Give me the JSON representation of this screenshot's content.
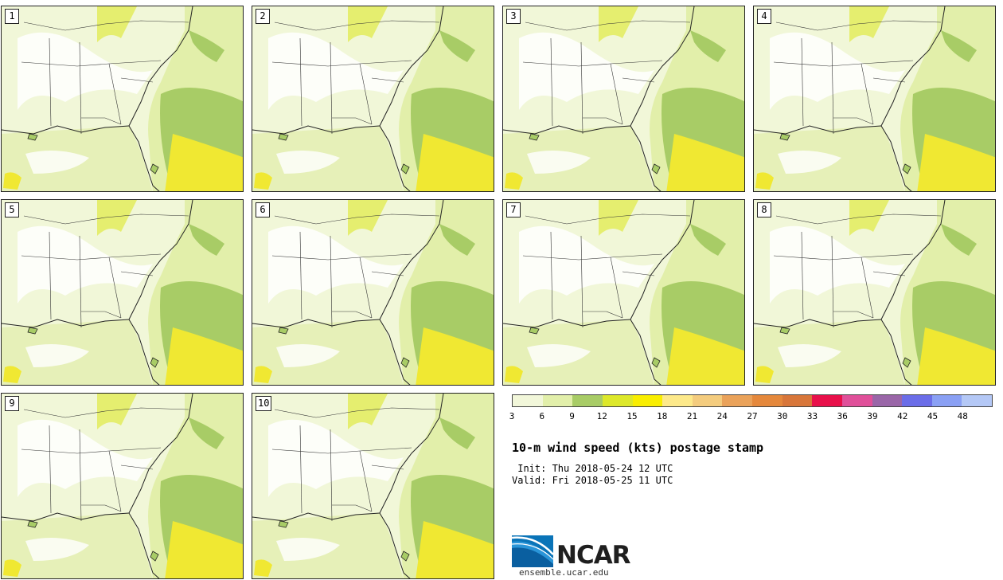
{
  "panels": [
    {
      "label": "1"
    },
    {
      "label": "2"
    },
    {
      "label": "3"
    },
    {
      "label": "4"
    },
    {
      "label": "5"
    },
    {
      "label": "6"
    },
    {
      "label": "7"
    },
    {
      "label": "8"
    },
    {
      "label": "9"
    },
    {
      "label": "10"
    }
  ],
  "legend": {
    "colors": [
      "#f2f7da",
      "#e2efaa",
      "#a8cc66",
      "#dde82a",
      "#f9ee00",
      "#fde98a",
      "#f4cc7e",
      "#eaa25a",
      "#e5883c",
      "#d8763a",
      "#e8104a",
      "#e0509a",
      "#9a66a8",
      "#6b6de8",
      "#8aa0f4",
      "#b4c8f6"
    ],
    "ticks": [
      "3",
      "6",
      "9",
      "12",
      "15",
      "18",
      "21",
      "24",
      "27",
      "30",
      "33",
      "36",
      "39",
      "42",
      "45",
      "48"
    ]
  },
  "title": "10-m wind speed (kts) postage stamp",
  "init_line": " Init: Thu 2018-05-24 12 UTC",
  "valid_line": "Valid: Fri 2018-05-25 11 UTC",
  "logo": {
    "name": "NCAR",
    "url": "ensemble.ucar.edu"
  },
  "colors": {
    "land_base": "#eef6d2",
    "ocean_mod": "#a8cc66",
    "ocean_strong": "#f0e832",
    "outline": "#222222"
  }
}
